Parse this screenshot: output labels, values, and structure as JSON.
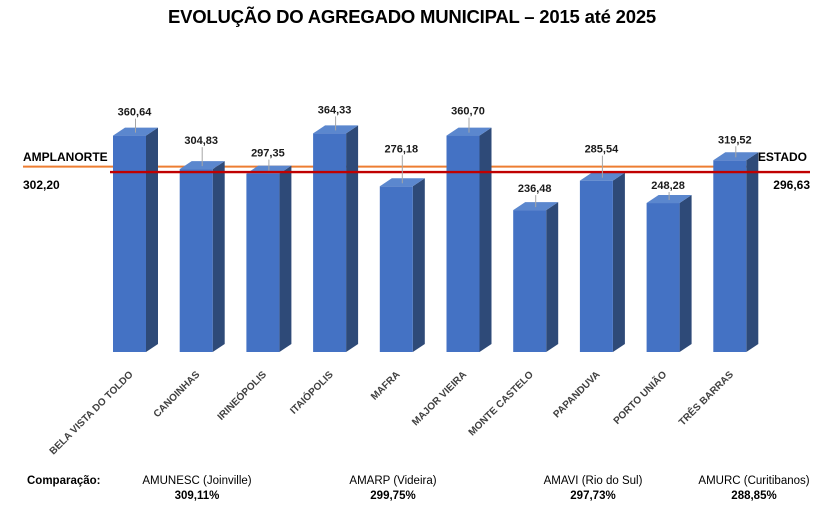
{
  "title": "EVOLUÇÃO DO AGREGADO MUNICIPAL – 2015 até 2025",
  "chart_data": {
    "type": "bar",
    "style": "3d-column",
    "title": "EVOLUÇÃO DO AGREGADO MUNICIPAL – 2015 até 2025",
    "categories": [
      "BELA VISTA DO TOLDO",
      "CANOINHAS",
      "IRINEÓPOLIS",
      "ITAIÓPOLIS",
      "MAFRA",
      "MAJOR VIEIRA",
      "MONTE CASTELO",
      "PAPANDUVA",
      "PORTO UNIÃO",
      "TRÊS BARRAS"
    ],
    "values": [
      360.64,
      304.83,
      297.35,
      364.33,
      276.18,
      360.7,
      236.48,
      285.54,
      248.28,
      319.52
    ],
    "value_labels": [
      "360,64",
      "304,83",
      "297,35",
      "364,33",
      "276,18",
      "360,70",
      "236,48",
      "285,54",
      "248,28",
      "319,52"
    ],
    "xlabel": "",
    "ylabel": "",
    "ylim": [
      0,
      400
    ],
    "grid": false,
    "legend": "none",
    "bar_color": "#4472C4",
    "bar_side_color": "#2E4A78",
    "bar_top_color": "#5B87CE",
    "label_color": "#1a1a1a",
    "category_label_color": "#404040",
    "leader_tick_color": "#A6A6A6",
    "reference_lines": [
      {
        "name": "AMPLANORTE",
        "value": 302.2,
        "value_label": "302,20",
        "color": "#ED7D31",
        "label_side": "left"
      },
      {
        "name": "ESTADO",
        "value": 296.63,
        "value_label": "296,63",
        "color": "#C00000",
        "label_side": "right"
      }
    ]
  },
  "comparison": {
    "label": "Comparação:",
    "items": [
      {
        "name": "AMUNESC (Joinville)",
        "value": "309,11%"
      },
      {
        "name": "AMARP (Videira)",
        "value": "299,75%"
      },
      {
        "name": "AMAVI (Rio do Sul)",
        "value": "297,73%"
      },
      {
        "name": "AMURC (Curitibanos)",
        "value": "288,85%"
      }
    ]
  }
}
